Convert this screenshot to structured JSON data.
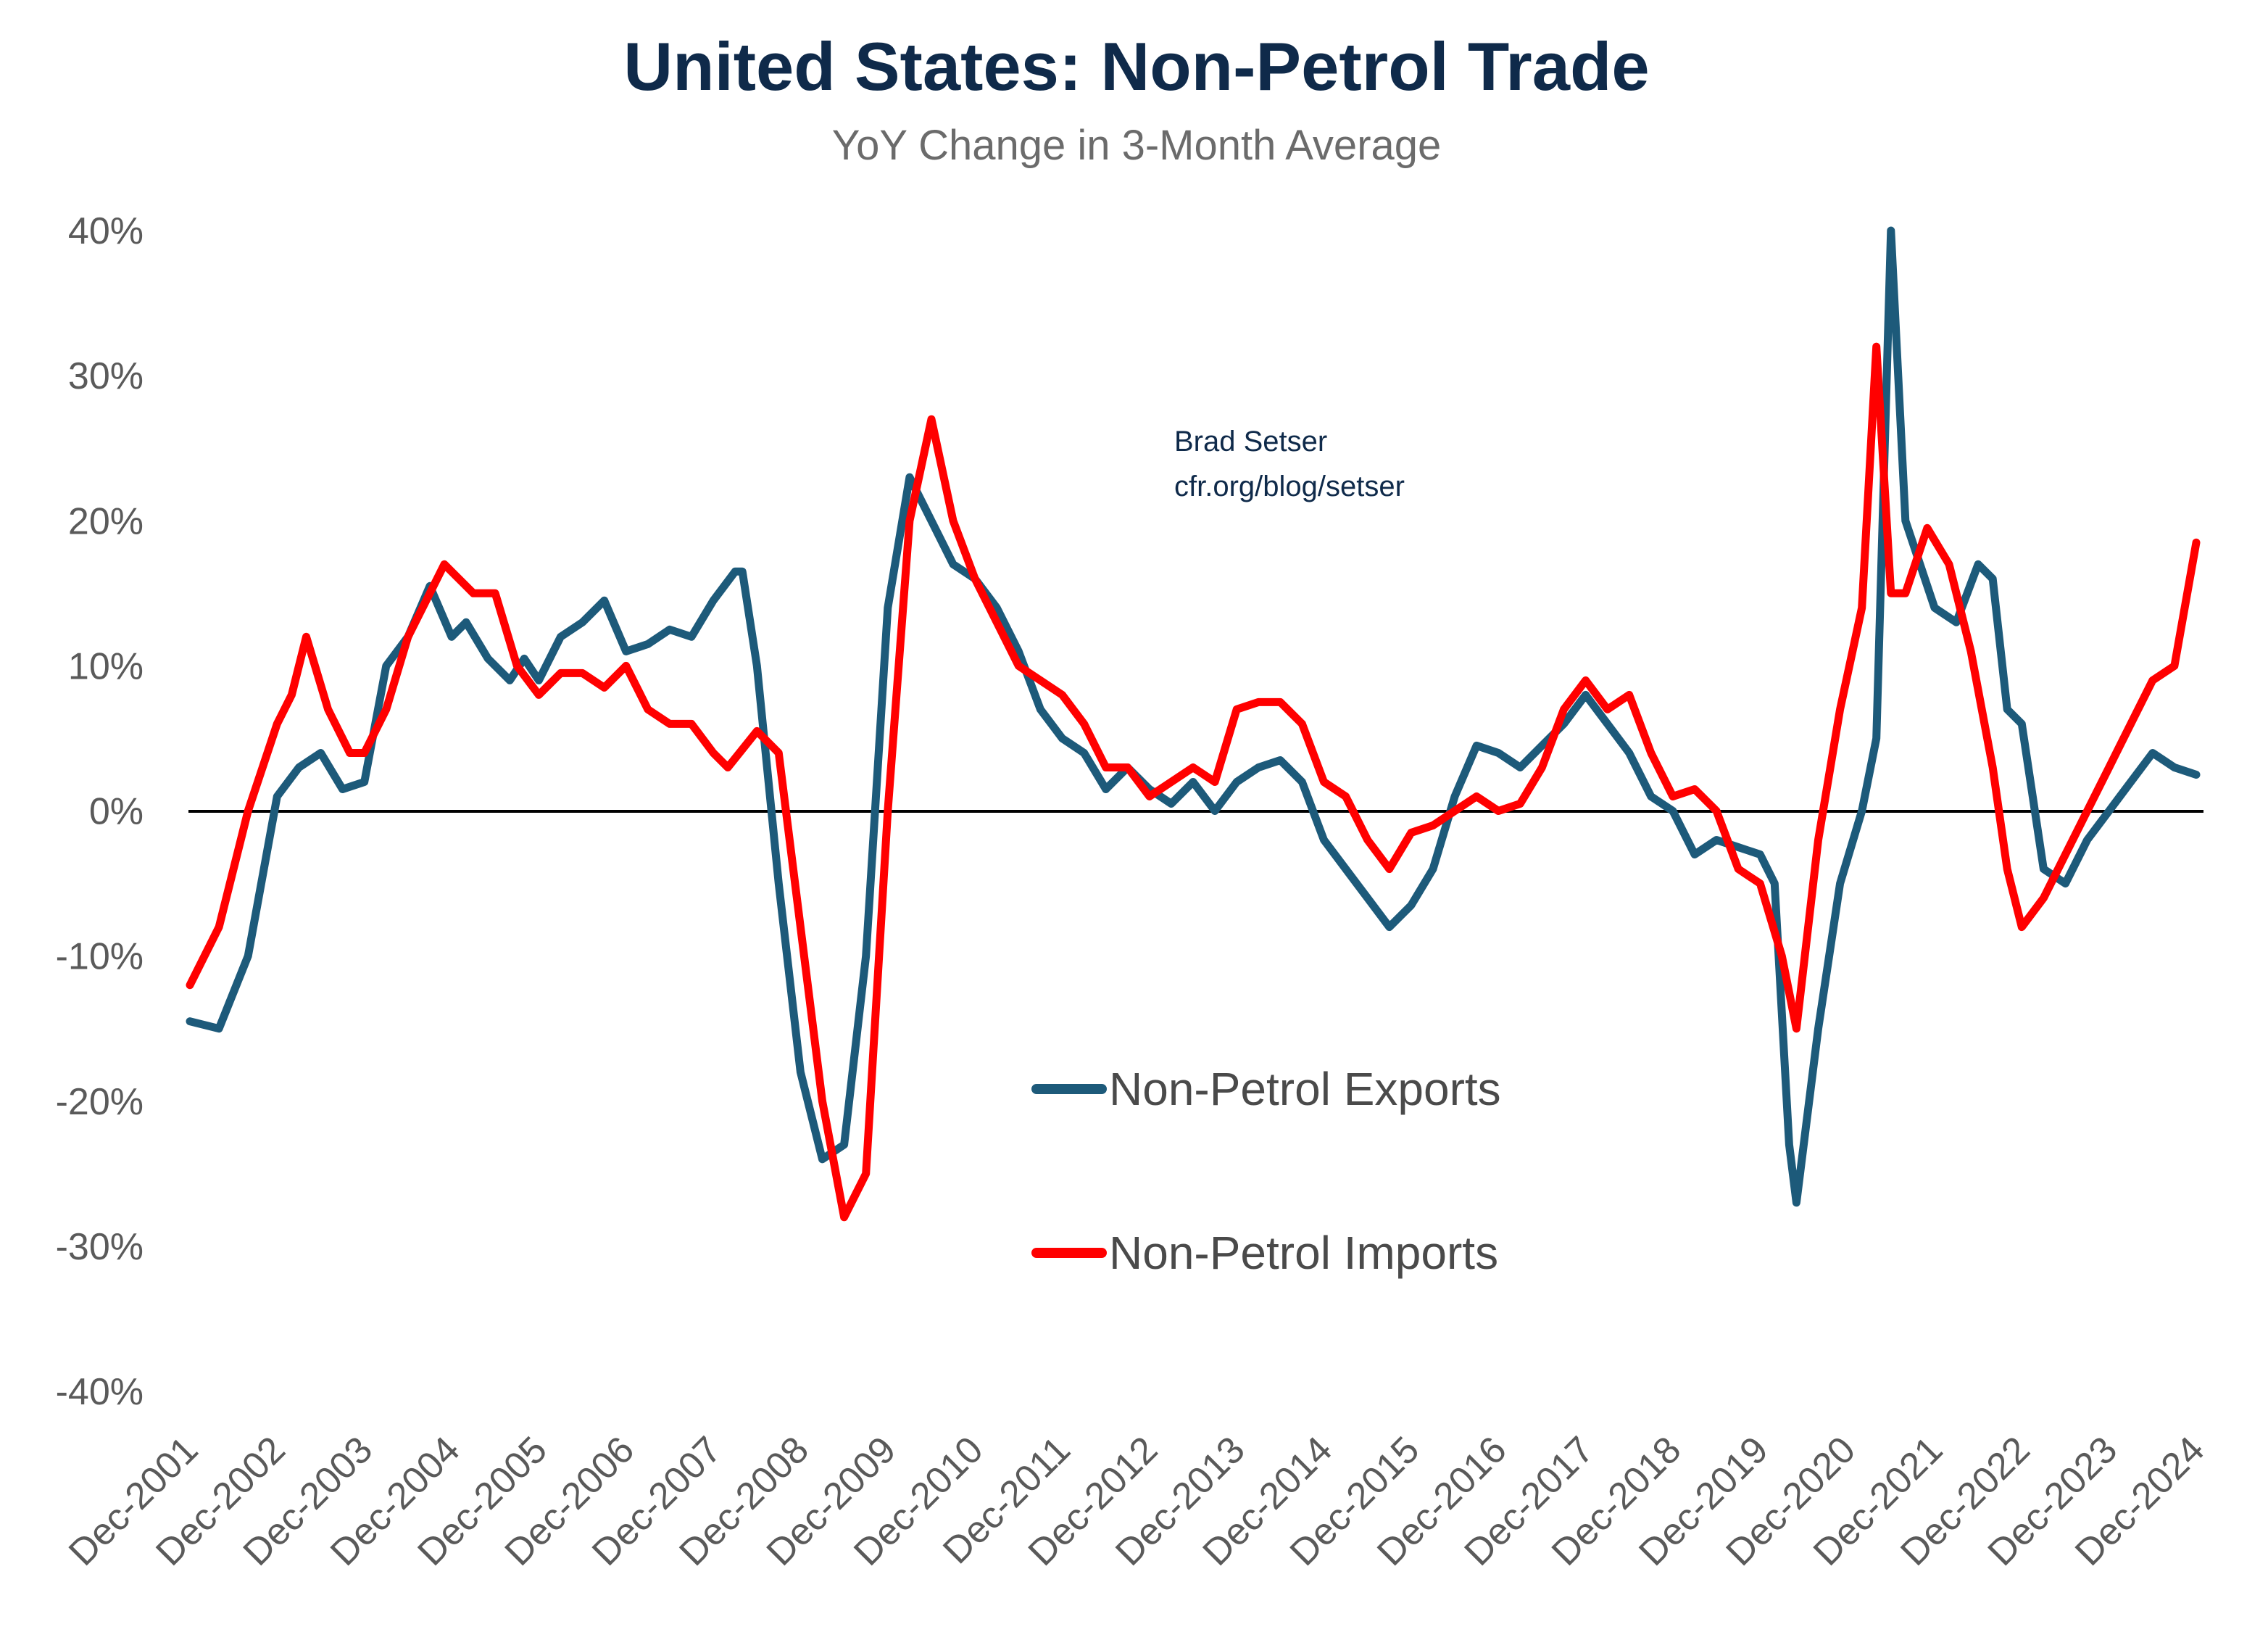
{
  "chart_data": {
    "type": "line",
    "title": "United States: Non-Petrol Trade",
    "subtitle": "YoY Change in 3-Month Average",
    "annotation": [
      "Brad Setser",
      "cfr.org/blog/setser"
    ],
    "xlabel": "",
    "ylabel": "",
    "ylim": [
      -40,
      40
    ],
    "y_ticks": [
      -40,
      -30,
      -20,
      -10,
      0,
      10,
      20,
      30,
      40
    ],
    "y_tick_labels": [
      "-40%",
      "-30%",
      "-20%",
      "-10%",
      "0%",
      "10%",
      "20%",
      "30%",
      "40%"
    ],
    "x_tick_labels": [
      "Dec-2001",
      "Dec-2002",
      "Dec-2003",
      "Dec-2004",
      "Dec-2005",
      "Dec-2006",
      "Dec-2007",
      "Dec-2008",
      "Dec-2009",
      "Dec-2010",
      "Dec-2011",
      "Dec-2012",
      "Dec-2013",
      "Dec-2014",
      "Dec-2015",
      "Dec-2016",
      "Dec-2017",
      "Dec-2018",
      "Dec-2019",
      "Dec-2020",
      "Dec-2021",
      "Dec-2022",
      "Dec-2023",
      "Dec-2024"
    ],
    "grid": false,
    "legend_position": "center-right",
    "colors": {
      "exports": "#1d5a7a",
      "imports": "#ff0000",
      "zero_line": "#000000",
      "title": "#0f2a4a",
      "subtitle": "#6b6b6b",
      "tick": "#5a5a5a",
      "annotation": "#0f2a4a"
    },
    "series": [
      {
        "name": "Non-Petrol Exports",
        "points": [
          [
            "Dec-2001",
            -14.5
          ],
          [
            "Apr-2002",
            -15
          ],
          [
            "Aug-2002",
            -10
          ],
          [
            "Dec-2002",
            1
          ],
          [
            "Mar-2003",
            3
          ],
          [
            "Jun-2003",
            4
          ],
          [
            "Sep-2003",
            1.5
          ],
          [
            "Dec-2003",
            2
          ],
          [
            "Mar-2004",
            10
          ],
          [
            "Jun-2004",
            12
          ],
          [
            "Sep-2004",
            15.5
          ],
          [
            "Dec-2004",
            12
          ],
          [
            "Feb-2005",
            13
          ],
          [
            "May-2005",
            10.5
          ],
          [
            "Aug-2005",
            9
          ],
          [
            "Oct-2005",
            10.5
          ],
          [
            "Dec-2005",
            9
          ],
          [
            "Mar-2006",
            12
          ],
          [
            "Jun-2006",
            13
          ],
          [
            "Sep-2006",
            14.5
          ],
          [
            "Dec-2006",
            11
          ],
          [
            "Mar-2007",
            11.5
          ],
          [
            "Jun-2007",
            12.5
          ],
          [
            "Sep-2007",
            12
          ],
          [
            "Dec-2007",
            14.5
          ],
          [
            "Mar-2008",
            16.5
          ],
          [
            "Apr-2008",
            16.5
          ],
          [
            "Jun-2008",
            10
          ],
          [
            "Sep-2008",
            -5
          ],
          [
            "Dec-2008",
            -18
          ],
          [
            "Mar-2009",
            -24
          ],
          [
            "Jun-2009",
            -23
          ],
          [
            "Sep-2009",
            -10
          ],
          [
            "Dec-2009",
            14
          ],
          [
            "Mar-2010",
            23
          ],
          [
            "Jun-2010",
            20
          ],
          [
            "Sep-2010",
            17
          ],
          [
            "Dec-2010",
            16
          ],
          [
            "Mar-2011",
            14
          ],
          [
            "Jun-2011",
            11
          ],
          [
            "Sep-2011",
            7
          ],
          [
            "Dec-2011",
            5
          ],
          [
            "Mar-2012",
            4
          ],
          [
            "Jun-2012",
            1.5
          ],
          [
            "Sep-2012",
            3
          ],
          [
            "Dec-2012",
            1.5
          ],
          [
            "Mar-2013",
            0.5
          ],
          [
            "Jun-2013",
            2
          ],
          [
            "Sep-2013",
            0
          ],
          [
            "Dec-2013",
            2
          ],
          [
            "Mar-2014",
            3
          ],
          [
            "Jun-2014",
            3.5
          ],
          [
            "Sep-2014",
            2
          ],
          [
            "Dec-2014",
            -2
          ],
          [
            "Mar-2015",
            -4
          ],
          [
            "Jun-2015",
            -6
          ],
          [
            "Sep-2015",
            -8
          ],
          [
            "Dec-2015",
            -6.5
          ],
          [
            "Mar-2016",
            -4
          ],
          [
            "Jun-2016",
            1
          ],
          [
            "Sep-2016",
            4.5
          ],
          [
            "Dec-2016",
            4
          ],
          [
            "Mar-2017",
            3
          ],
          [
            "Jun-2017",
            4.5
          ],
          [
            "Sep-2017",
            6
          ],
          [
            "Dec-2017",
            8
          ],
          [
            "Mar-2018",
            6
          ],
          [
            "Jun-2018",
            4
          ],
          [
            "Sep-2018",
            1
          ],
          [
            "Dec-2018",
            0
          ],
          [
            "Mar-2019",
            -3
          ],
          [
            "Jun-2019",
            -2
          ],
          [
            "Sep-2019",
            -2.5
          ],
          [
            "Dec-2019",
            -3
          ],
          [
            "Feb-2020",
            -5
          ],
          [
            "Apr-2020",
            -23
          ],
          [
            "May-2020",
            -27
          ],
          [
            "Aug-2020",
            -15
          ],
          [
            "Nov-2020",
            -5
          ],
          [
            "Feb-2021",
            0
          ],
          [
            "Apr-2021",
            5
          ],
          [
            "Jun-2021",
            40
          ],
          [
            "Aug-2021",
            20
          ],
          [
            "Oct-2021",
            17
          ],
          [
            "Dec-2021",
            14
          ],
          [
            "Mar-2022",
            13
          ],
          [
            "Jun-2022",
            17
          ],
          [
            "Aug-2022",
            16
          ],
          [
            "Oct-2022",
            7
          ],
          [
            "Dec-2022",
            6
          ],
          [
            "Mar-2023",
            -4
          ],
          [
            "Jun-2023",
            -5
          ],
          [
            "Sep-2023",
            -2
          ],
          [
            "Dec-2023",
            0
          ],
          [
            "Mar-2024",
            2
          ],
          [
            "Jun-2024",
            4
          ],
          [
            "Sep-2024",
            3
          ],
          [
            "Dec-2024",
            2.5
          ]
        ]
      },
      {
        "name": "Non-Petrol Imports",
        "points": [
          [
            "Dec-2001",
            -12
          ],
          [
            "Apr-2002",
            -8
          ],
          [
            "Aug-2002",
            0
          ],
          [
            "Dec-2002",
            6
          ],
          [
            "Feb-2003",
            8
          ],
          [
            "Apr-2003",
            12
          ],
          [
            "Jul-2003",
            7
          ],
          [
            "Oct-2003",
            4
          ],
          [
            "Dec-2003",
            4
          ],
          [
            "Mar-2004",
            7
          ],
          [
            "Jun-2004",
            12
          ],
          [
            "Sep-2004",
            15
          ],
          [
            "Nov-2004",
            17
          ],
          [
            "Mar-2005",
            15
          ],
          [
            "Jun-2005",
            15
          ],
          [
            "Sep-2005",
            10
          ],
          [
            "Dec-2005",
            8
          ],
          [
            "Mar-2006",
            9.5
          ],
          [
            "Jun-2006",
            9.5
          ],
          [
            "Sep-2006",
            8.5
          ],
          [
            "Dec-2006",
            10
          ],
          [
            "Mar-2007",
            7
          ],
          [
            "Jun-2007",
            6
          ],
          [
            "Sep-2007",
            6
          ],
          [
            "Dec-2007",
            4
          ],
          [
            "Feb-2008",
            3
          ],
          [
            "Jun-2008",
            5.5
          ],
          [
            "Sep-2008",
            4
          ],
          [
            "Dec-2008",
            -8
          ],
          [
            "Mar-2009",
            -20
          ],
          [
            "Jun-2009",
            -28
          ],
          [
            "Sep-2009",
            -25
          ],
          [
            "Dec-2009",
            0
          ],
          [
            "Mar-2010",
            20
          ],
          [
            "Jun-2010",
            27
          ],
          [
            "Sep-2010",
            20
          ],
          [
            "Dec-2010",
            16
          ],
          [
            "Mar-2011",
            13
          ],
          [
            "Jun-2011",
            10
          ],
          [
            "Sep-2011",
            9
          ],
          [
            "Dec-2011",
            8
          ],
          [
            "Mar-2012",
            6
          ],
          [
            "Jun-2012",
            3
          ],
          [
            "Sep-2012",
            3
          ],
          [
            "Dec-2012",
            1
          ],
          [
            "Mar-2013",
            2
          ],
          [
            "Jun-2013",
            3
          ],
          [
            "Sep-2013",
            2
          ],
          [
            "Dec-2013",
            7
          ],
          [
            "Mar-2014",
            7.5
          ],
          [
            "Jun-2014",
            7.5
          ],
          [
            "Sep-2014",
            6
          ],
          [
            "Dec-2014",
            2
          ],
          [
            "Mar-2015",
            1
          ],
          [
            "Jun-2015",
            -2
          ],
          [
            "Sep-2015",
            -4
          ],
          [
            "Dec-2015",
            -1.5
          ],
          [
            "Mar-2016",
            -1
          ],
          [
            "Jun-2016",
            0
          ],
          [
            "Sep-2016",
            1
          ],
          [
            "Dec-2016",
            0
          ],
          [
            "Mar-2017",
            0.5
          ],
          [
            "Jun-2017",
            3
          ],
          [
            "Sep-2017",
            7
          ],
          [
            "Dec-2017",
            9
          ],
          [
            "Mar-2018",
            7
          ],
          [
            "Jun-2018",
            8
          ],
          [
            "Sep-2018",
            4
          ],
          [
            "Dec-2018",
            1
          ],
          [
            "Mar-2019",
            1.5
          ],
          [
            "Jun-2019",
            0
          ],
          [
            "Sep-2019",
            -4
          ],
          [
            "Dec-2019",
            -5
          ],
          [
            "Mar-2020",
            -10
          ],
          [
            "May-2020",
            -15
          ],
          [
            "Aug-2020",
            -2
          ],
          [
            "Nov-2020",
            7
          ],
          [
            "Feb-2021",
            14
          ],
          [
            "Apr-2021",
            32
          ],
          [
            "Jun-2021",
            15
          ],
          [
            "Aug-2021",
            15
          ],
          [
            "Nov-2021",
            19.5
          ],
          [
            "Feb-2022",
            17
          ],
          [
            "May-2022",
            11
          ],
          [
            "Aug-2022",
            3
          ],
          [
            "Oct-2022",
            -4
          ],
          [
            "Dec-2022",
            -8
          ],
          [
            "Mar-2023",
            -6
          ],
          [
            "Jun-2023",
            -3
          ],
          [
            "Sep-2023",
            0
          ],
          [
            "Dec-2023",
            3
          ],
          [
            "Mar-2024",
            6
          ],
          [
            "Jun-2024",
            9
          ],
          [
            "Sep-2024",
            10
          ],
          [
            "Dec-2024",
            18.5
          ]
        ]
      }
    ]
  }
}
